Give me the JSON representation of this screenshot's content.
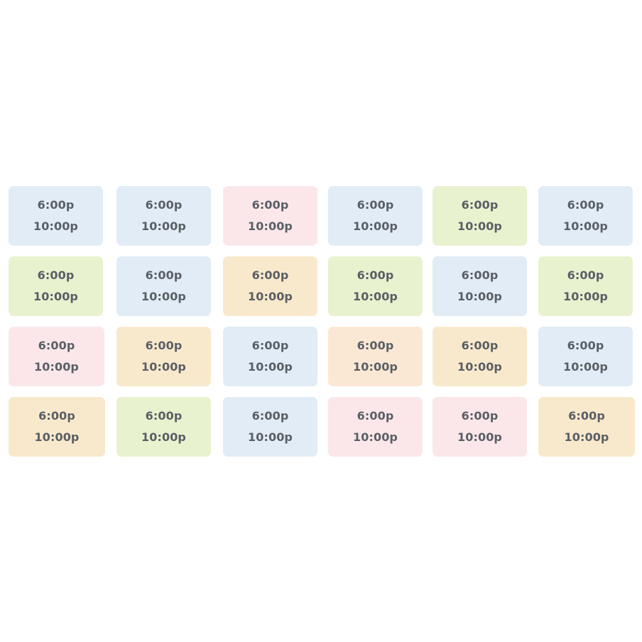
{
  "colors": {
    "blue": "#e1ecf6",
    "pink": "#fbe7ea",
    "green": "#e8f2cf",
    "orange": "#f9e9cc",
    "peach": "#fbe8d4",
    "text": "#5a5f66"
  },
  "schedule": {
    "rows": [
      [
        {
          "start": "6:00p",
          "end": "10:00p",
          "color": "blue"
        },
        {
          "start": "6:00p",
          "end": "10:00p",
          "color": "blue"
        },
        {
          "start": "6:00p",
          "end": "10:00p",
          "color": "pink"
        },
        {
          "start": "6:00p",
          "end": "10:00p",
          "color": "blue"
        },
        {
          "start": "6:00p",
          "end": "10:00p",
          "color": "green"
        },
        {
          "start": "6:00p",
          "end": "10:00p",
          "color": "blue"
        }
      ],
      [
        {
          "start": "6:00p",
          "end": "10:00p",
          "color": "green"
        },
        {
          "start": "6:00p",
          "end": "10:00p",
          "color": "blue"
        },
        {
          "start": "6:00p",
          "end": "10:00p",
          "color": "orange"
        },
        {
          "start": "6:00p",
          "end": "10:00p",
          "color": "green"
        },
        {
          "start": "6:00p",
          "end": "10:00p",
          "color": "blue"
        },
        {
          "start": "6:00p",
          "end": "10:00p",
          "color": "green"
        }
      ],
      [
        {
          "start": "6:00p",
          "end": "10:00p",
          "color": "pink"
        },
        {
          "start": "6:00p",
          "end": "10:00p",
          "color": "orange"
        },
        {
          "start": "6:00p",
          "end": "10:00p",
          "color": "blue"
        },
        {
          "start": "6:00p",
          "end": "10:00p",
          "color": "peach"
        },
        {
          "start": "6:00p",
          "end": "10:00p",
          "color": "orange"
        },
        {
          "start": "6:00p",
          "end": "10:00p",
          "color": "blue"
        }
      ],
      [
        {
          "start": "6:00p",
          "end": "10:00p",
          "color": "orange"
        },
        {
          "start": "6:00p",
          "end": "10:00p",
          "color": "green"
        },
        {
          "start": "6:00p",
          "end": "10:00p",
          "color": "blue"
        },
        {
          "start": "6:00p",
          "end": "10:00p",
          "color": "pink"
        },
        {
          "start": "6:00p",
          "end": "10:00p",
          "color": "pink"
        },
        {
          "start": "6:00p",
          "end": "10:00p",
          "color": "orange"
        }
      ]
    ]
  }
}
